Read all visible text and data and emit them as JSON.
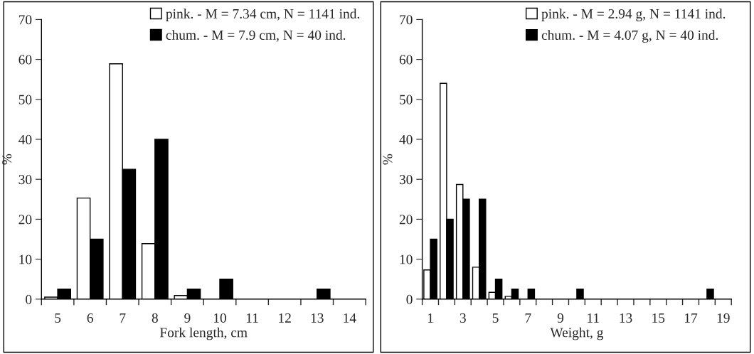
{
  "chart_data": [
    {
      "type": "bar",
      "xlabel": "Fork length, cm",
      "ylabel": "%",
      "categories": [
        "5",
        "6",
        "7",
        "8",
        "9",
        "10",
        "11",
        "12",
        "13",
        "14"
      ],
      "series": [
        {
          "name": "pink. - M = 7.34 cm, N = 1141 ind.",
          "color": "#ffffff",
          "values": [
            0.5,
            25.3,
            58.9,
            13.9,
            0.9,
            null,
            null,
            null,
            null,
            null
          ]
        },
        {
          "name": "chum. - M = 7.9 cm, N = 40 ind.",
          "color": "#000000",
          "values": [
            2.5,
            15,
            32.5,
            40,
            2.5,
            5,
            null,
            null,
            2.5,
            null
          ]
        }
      ],
      "ylim": [
        0,
        70
      ],
      "yticks": [
        0,
        10,
        20,
        30,
        40,
        50,
        60,
        70
      ],
      "grid": false,
      "legend": "top right"
    },
    {
      "type": "bar",
      "xlabel": "Weight, g",
      "ylabel": "%",
      "categories": [
        "1",
        null,
        "3",
        null,
        "5",
        null,
        "7",
        null,
        "9",
        null,
        "11",
        null,
        "13",
        null,
        "15",
        null,
        "17",
        null,
        "19"
      ],
      "series": [
        {
          "name": "pink. - M = 2.94 g, N = 1141 ind.",
          "color": "#ffffff",
          "values": [
            7.3,
            54,
            28.7,
            8,
            1.7,
            0.7,
            null,
            null,
            null,
            null,
            null,
            null,
            null,
            null,
            null,
            null,
            null,
            null,
            null
          ]
        },
        {
          "name": "chum. - M = 4.07 g, N = 40 ind.",
          "color": "#000000",
          "values": [
            15,
            20,
            25,
            25,
            5,
            2.5,
            2.5,
            null,
            null,
            2.5,
            null,
            null,
            null,
            null,
            null,
            null,
            null,
            2.5,
            null
          ]
        }
      ],
      "ylim": [
        0,
        70
      ],
      "yticks": [
        0,
        10,
        20,
        30,
        40,
        50,
        60,
        70
      ],
      "grid": false,
      "legend": "top right"
    }
  ]
}
